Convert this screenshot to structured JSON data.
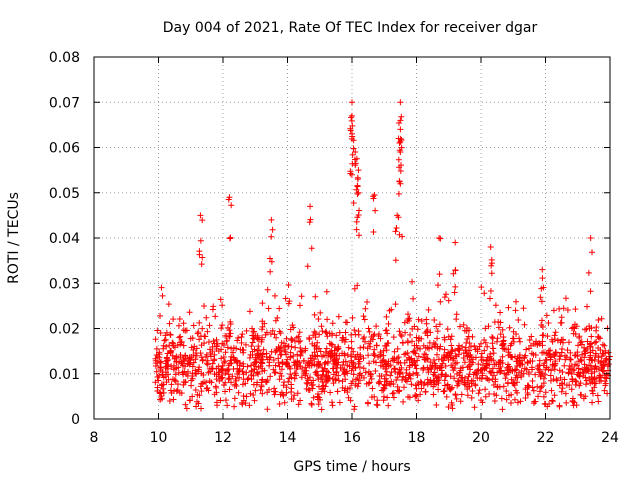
{
  "chart_data": {
    "type": "scatter",
    "title": "Day 004 of 2021, Rate Of TEC Index for receiver dgar",
    "xlabel": "GPS time / hours",
    "ylabel": "ROTI / TECUs",
    "xlim": [
      8,
      24
    ],
    "ylim": [
      0,
      0.08
    ],
    "xticks": [
      8,
      10,
      12,
      14,
      16,
      18,
      20,
      22,
      24
    ],
    "yticks": [
      0,
      0.01,
      0.02,
      0.03,
      0.04,
      0.05,
      0.06,
      0.07,
      0.08
    ],
    "xtick_labels": [
      "8",
      "10",
      "12",
      "14",
      "16",
      "18",
      "20",
      "22",
      "24"
    ],
    "ytick_labels": [
      "0",
      "0.01",
      "0.02",
      "0.03",
      "0.04",
      "0.05",
      "0.06",
      "0.07",
      "0.08"
    ],
    "grid": true,
    "marker": "plus",
    "series": [
      {
        "name": "ROTI",
        "color": "#ff0000",
        "data_range_x": [
          9.9,
          24
        ],
        "baseline_band": [
          0.003,
          0.02
        ],
        "notable_points": [
          {
            "x": 12.2,
            "y": 0.049
          },
          {
            "x": 11.3,
            "y": 0.045
          },
          {
            "x": 13.5,
            "y": 0.044
          },
          {
            "x": 14.7,
            "y": 0.047
          },
          {
            "x": 16.0,
            "y": 0.07
          },
          {
            "x": 16.0,
            "y": 0.067
          },
          {
            "x": 16.0,
            "y": 0.063
          },
          {
            "x": 16.1,
            "y": 0.059
          },
          {
            "x": 16.2,
            "y": 0.055
          },
          {
            "x": 16.2,
            "y": 0.05
          },
          {
            "x": 16.7,
            "y": 0.0495
          },
          {
            "x": 17.5,
            "y": 0.07
          },
          {
            "x": 17.5,
            "y": 0.066
          },
          {
            "x": 17.5,
            "y": 0.064
          },
          {
            "x": 17.5,
            "y": 0.059
          },
          {
            "x": 17.5,
            "y": 0.052
          },
          {
            "x": 17.4,
            "y": 0.045
          },
          {
            "x": 18.7,
            "y": 0.04
          },
          {
            "x": 19.2,
            "y": 0.039
          },
          {
            "x": 20.3,
            "y": 0.038
          },
          {
            "x": 21.9,
            "y": 0.033
          },
          {
            "x": 23.4,
            "y": 0.04
          }
        ]
      }
    ]
  }
}
